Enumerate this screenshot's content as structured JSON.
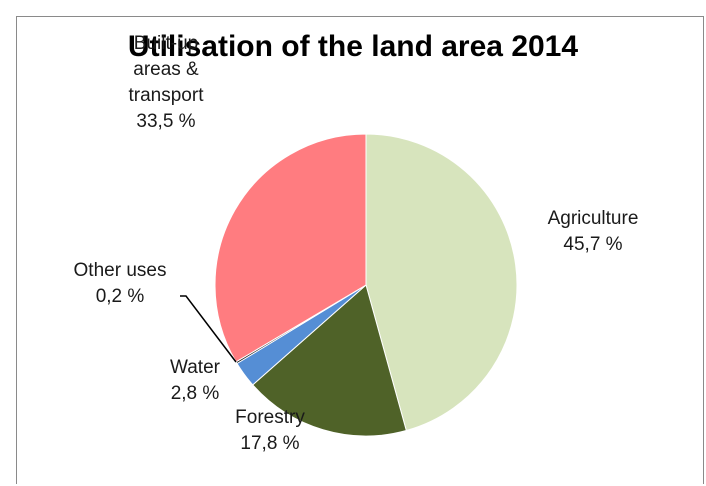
{
  "chart_data": {
    "type": "pie",
    "title": "Utilisation of the land area 2014",
    "slices": [
      {
        "label_lines": [
          "Agriculture"
        ],
        "value_label": "45,7 %",
        "value": 45.7,
        "color": "#d7e4bd"
      },
      {
        "label_lines": [
          "Forestry"
        ],
        "value_label": "17,8 %",
        "value": 17.8,
        "color": "#4f6228"
      },
      {
        "label_lines": [
          "Water"
        ],
        "value_label": "2,8 %",
        "value": 2.8,
        "color": "#558ed5"
      },
      {
        "label_lines": [
          "Other uses"
        ],
        "value_label": "0,2 %",
        "value": 0.2,
        "color": "#1f1f1f"
      },
      {
        "label_lines": [
          "Built-up",
          "areas &",
          "transport"
        ],
        "value_label": "33,5 %",
        "value": 33.5,
        "color": "#ff7c80"
      }
    ]
  }
}
